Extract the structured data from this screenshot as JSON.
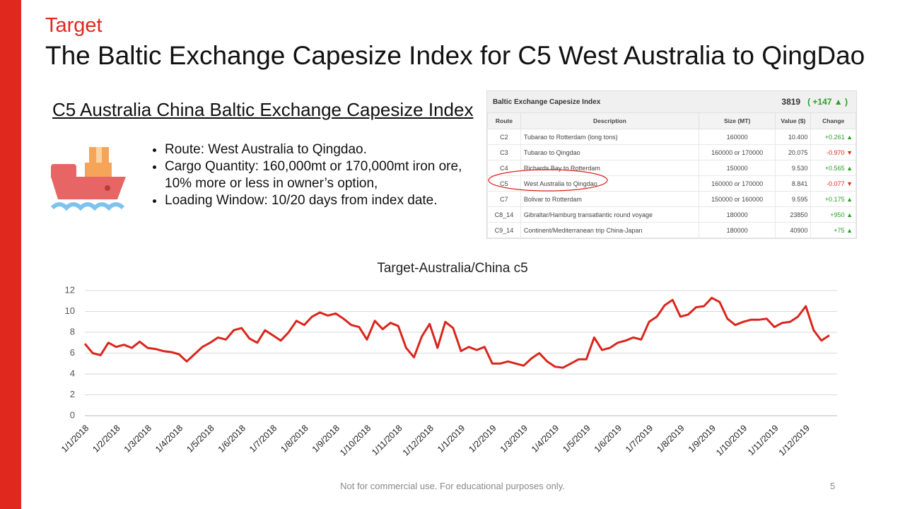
{
  "header": {
    "kicker": "Target",
    "title": "The Baltic Exchange Capesize Index for C5 West Australia to QingDao"
  },
  "subtitle": "C5 Australia China Baltic Exchange Capesize Index",
  "bullets": [
    "Route: West Australia to Qingdao.",
    "Cargo Quantity: 160,000mt or 170,000mt iron ore, 10% more or less in owner’s option,",
    "Loading Window: 10/20 days from index date."
  ],
  "table": {
    "title": "Baltic Exchange Capesize Index",
    "index": "3819",
    "change": "( +147",
    "change_close": ")",
    "columns": [
      "Route",
      "Description",
      "Size (MT)",
      "Value ($)",
      "Change"
    ],
    "rows": [
      [
        "C2",
        "Tubarao to Rotterdam (long tons)",
        "160000",
        "10.400",
        "+0.261"
      ],
      [
        "C3",
        "Tubarao to Qingdao",
        "160000 or 170000",
        "20.075",
        "-0.970"
      ],
      [
        "C4",
        "Richards Bay to Rotterdam",
        "150000",
        "9.530",
        "+0.565"
      ],
      [
        "C5",
        "West Australia to Qingdao",
        "160000 or 170000",
        "8.841",
        "-0.077"
      ],
      [
        "C7",
        "Bolivar to Rotterdam",
        "150000 or 160000",
        "9.595",
        "+0.175"
      ],
      [
        "C8_14",
        "Gibraltar/Hamburg transatlantic round voyage",
        "180000",
        "23850",
        "+950"
      ],
      [
        "C9_14",
        "Continent/Mediterranean trip China-Japan",
        "180000",
        "40900",
        "+75"
      ]
    ]
  },
  "chart_data": {
    "type": "line",
    "title": "Target-Australia/China c5",
    "color": "#d9261c",
    "grid": true,
    "ylim": [
      0,
      12
    ],
    "yticks": [
      0,
      2,
      4,
      6,
      8,
      10,
      12
    ],
    "categories": [
      "1/1/2018",
      null,
      null,
      null,
      "1/2/2018",
      null,
      null,
      null,
      "1/3/2018",
      null,
      null,
      null,
      "1/4/2018",
      null,
      null,
      null,
      "1/5/2018",
      null,
      null,
      null,
      "1/6/2018",
      null,
      null,
      null,
      "1/7/2018",
      null,
      null,
      null,
      "1/8/2018",
      null,
      null,
      null,
      "1/9/2018",
      null,
      null,
      null,
      "1/10/2018",
      null,
      null,
      null,
      "1/11/2018",
      null,
      null,
      null,
      "1/12/2018",
      null,
      null,
      null,
      "1/1/2019",
      null,
      null,
      null,
      "1/2/2019",
      null,
      null,
      null,
      "1/3/2019",
      null,
      null,
      null,
      "1/4/2019",
      null,
      null,
      null,
      "1/5/2019",
      null,
      null,
      null,
      "1/6/2019",
      null,
      null,
      null,
      "1/7/2019",
      null,
      null,
      null,
      "1/8/2019",
      null,
      null,
      null,
      "1/9/2019",
      null,
      null,
      null,
      "1/10/2019",
      null,
      null,
      null,
      "1/11/2019",
      null,
      null,
      null,
      "1/12/2019",
      null,
      null,
      null
    ],
    "values": [
      6.9,
      6.0,
      5.8,
      7.0,
      6.6,
      6.8,
      6.5,
      7.1,
      6.5,
      6.4,
      6.2,
      6.1,
      5.9,
      5.2,
      5.9,
      6.6,
      7.0,
      7.5,
      7.3,
      8.2,
      8.4,
      7.4,
      7.0,
      8.2,
      7.7,
      7.2,
      8.0,
      9.1,
      8.7,
      9.5,
      9.9,
      9.6,
      9.8,
      9.3,
      8.7,
      8.5,
      7.3,
      9.1,
      8.3,
      8.9,
      8.6,
      6.5,
      5.6,
      7.6,
      8.8,
      6.5,
      9.0,
      8.4,
      6.2,
      6.6,
      6.3,
      6.6,
      5.0,
      5.0,
      5.2,
      5.0,
      4.8,
      5.5,
      6.0,
      5.2,
      4.7,
      4.6,
      5.0,
      5.4,
      5.4,
      7.5,
      6.3,
      6.5,
      7.0,
      7.2,
      7.5,
      7.3,
      9.0,
      9.5,
      10.6,
      11.1,
      9.5,
      9.7,
      10.4,
      10.5,
      11.3,
      10.9,
      9.3,
      8.7,
      9.0,
      9.2,
      9.2,
      9.3,
      8.5,
      8.9,
      9.0,
      9.5,
      10.5,
      8.2,
      7.2,
      7.7
    ]
  },
  "footer": {
    "note": "Not for commercial use. For educational purposes only.",
    "page": "5"
  }
}
